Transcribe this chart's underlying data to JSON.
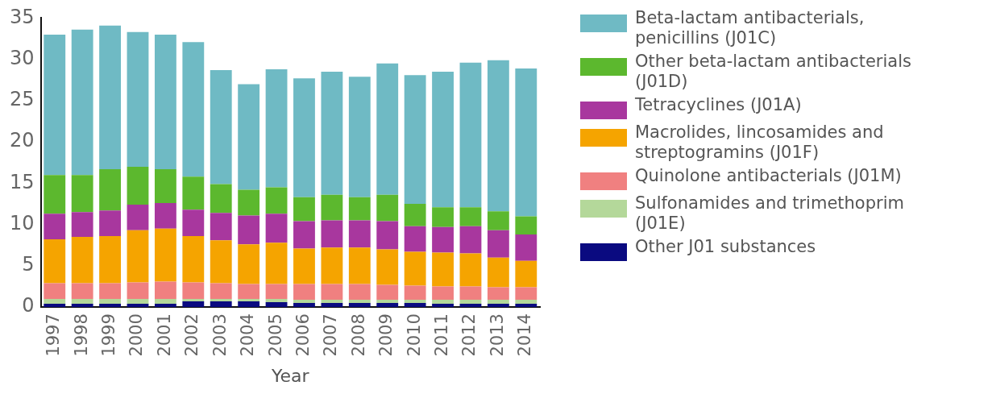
{
  "chart_data": {
    "type": "bar",
    "stacked": true,
    "xlabel": "Year",
    "legend": "right",
    "grid": false,
    "categories": [
      "1997",
      "1998",
      "1999",
      "2000",
      "2001",
      "2002",
      "2003",
      "2004",
      "2005",
      "2006",
      "2007",
      "2008",
      "2009",
      "2010",
      "2011",
      "2012",
      "2013",
      "2014"
    ],
    "ylim": [
      0,
      35
    ],
    "yticks": [
      0,
      5,
      10,
      15,
      20,
      25,
      30,
      35
    ],
    "series": [
      {
        "name": "Other J01 substances",
        "color": "#0a0a80",
        "values": [
          0.4,
          0.4,
          0.4,
          0.4,
          0.4,
          0.7,
          0.7,
          0.7,
          0.6,
          0.5,
          0.5,
          0.5,
          0.5,
          0.5,
          0.4,
          0.4,
          0.4,
          0.4
        ]
      },
      {
        "name": "Sulfonamides and trimethoprim (J01E)",
        "color": "#b4d89a",
        "values": [
          0.6,
          0.6,
          0.6,
          0.6,
          0.6,
          0.3,
          0.3,
          0.3,
          0.4,
          0.4,
          0.4,
          0.4,
          0.4,
          0.4,
          0.5,
          0.5,
          0.5,
          0.5
        ]
      },
      {
        "name": "Quinolone antibacterials (J01M)",
        "color": "#f08080",
        "values": [
          1.9,
          1.9,
          1.9,
          2.0,
          2.1,
          2.0,
          1.9,
          1.8,
          1.8,
          1.9,
          1.9,
          1.9,
          1.8,
          1.7,
          1.6,
          1.6,
          1.5,
          1.5
        ]
      },
      {
        "name": "Macrolides, lincosamides and streptogramins (J01F)",
        "color": "#f5a400",
        "values": [
          5.3,
          5.6,
          5.7,
          6.3,
          6.4,
          5.6,
          5.2,
          4.8,
          5.0,
          4.3,
          4.4,
          4.4,
          4.3,
          4.1,
          4.1,
          4.0,
          3.6,
          3.2
        ]
      },
      {
        "name": "Tetracyclines (J01A)",
        "color": "#a8379e",
        "values": [
          3.1,
          3.0,
          3.1,
          3.1,
          3.1,
          3.2,
          3.3,
          3.5,
          3.5,
          3.3,
          3.3,
          3.3,
          3.4,
          3.1,
          3.1,
          3.3,
          3.3,
          3.2
        ]
      },
      {
        "name": "Other beta-lactam antibacterials (J01D)",
        "color": "#5cb82e",
        "values": [
          4.7,
          4.5,
          5.0,
          4.6,
          4.1,
          4.0,
          3.5,
          3.1,
          3.2,
          2.9,
          3.1,
          2.8,
          3.2,
          2.7,
          2.4,
          2.3,
          2.3,
          2.2
        ]
      },
      {
        "name": "Beta-lactam antibacterials, penicillins (J01C)",
        "color": "#6fbac4",
        "values": [
          17.0,
          17.6,
          17.4,
          16.3,
          16.3,
          16.3,
          13.8,
          12.8,
          14.3,
          14.4,
          14.9,
          14.6,
          15.9,
          15.6,
          16.4,
          17.5,
          18.3,
          17.9
        ]
      }
    ]
  }
}
